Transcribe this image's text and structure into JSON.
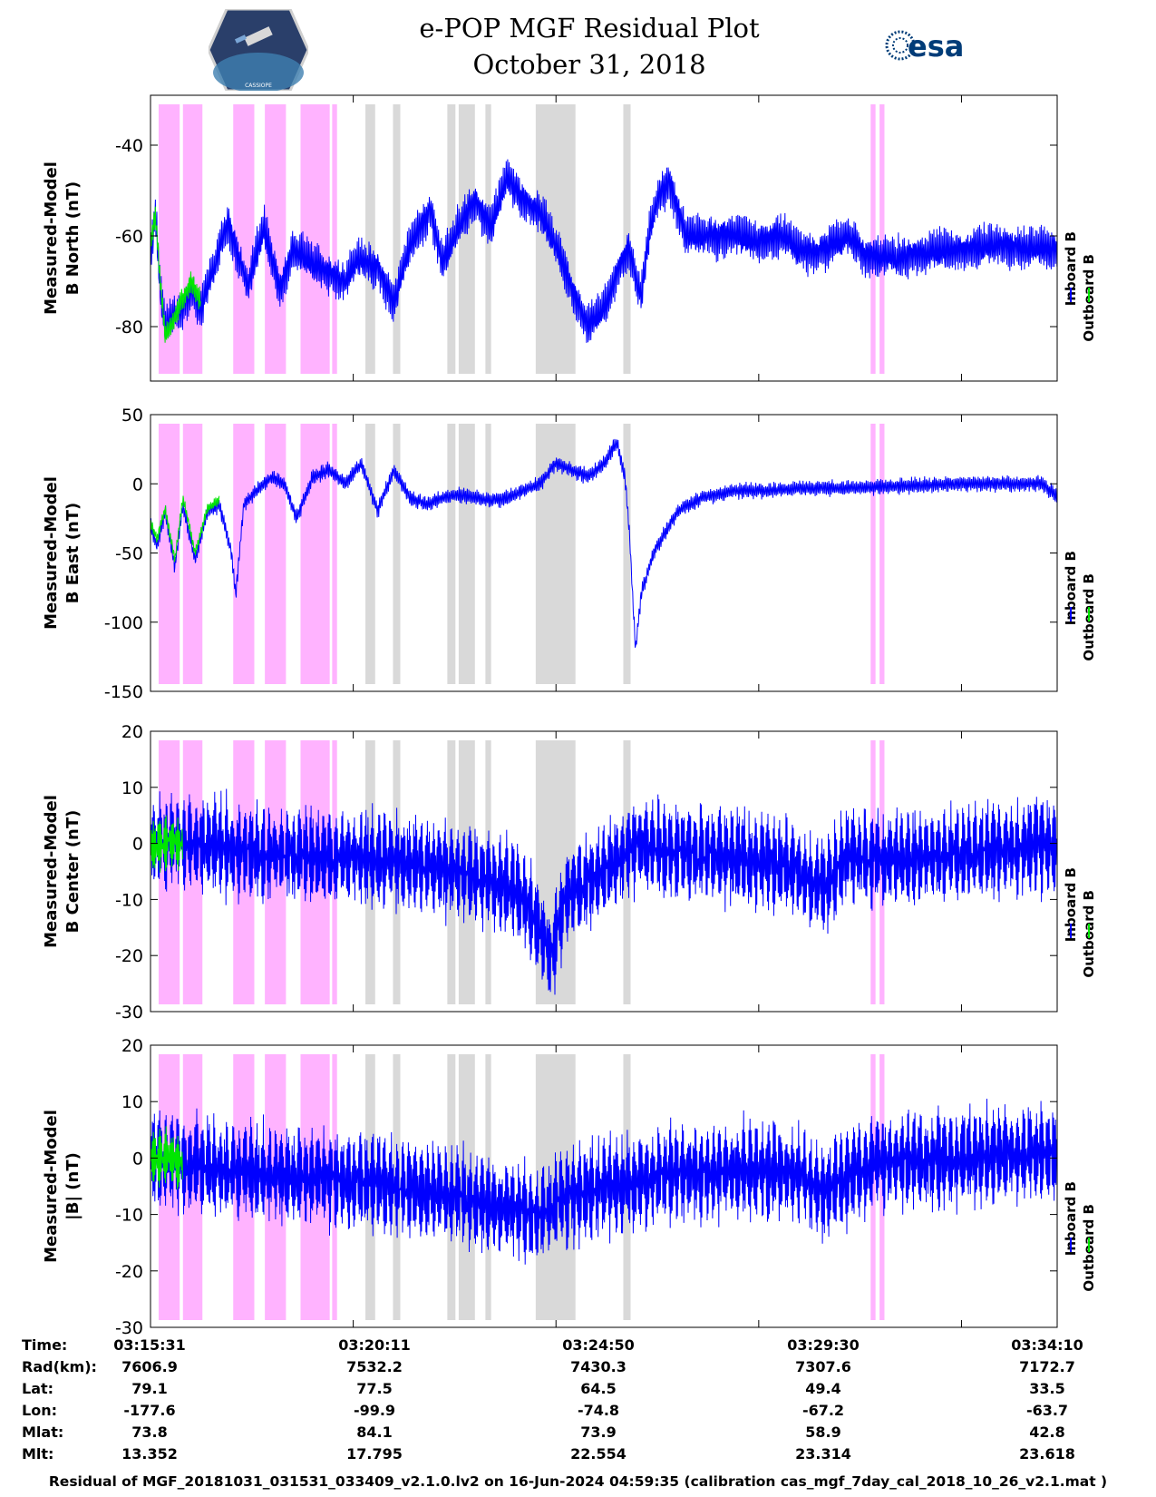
{
  "header": {
    "title_line1": "e-POP MGF Residual Plot",
    "title_line2": "October 31, 2018",
    "logo_left_label": "CASSIOPE",
    "logo_right_label": "esa"
  },
  "colors": {
    "inboard": "#0000ff",
    "outboard": "#00e600",
    "magenta_band": "#ffb3ff",
    "gray_band": "#d9d9d9"
  },
  "legend": {
    "inboard": "Inboard B",
    "outboard": "Outboard B"
  },
  "chart_data": [
    {
      "type": "line",
      "panel": "north",
      "ylabel_line1": "Measured-Model",
      "ylabel_line2": "B North (nT)",
      "ylim": [
        -92,
        -29
      ],
      "yticks": [
        -80,
        -60,
        -40
      ],
      "xlim": [
        0,
        1118
      ],
      "xlabel": "Time",
      "series": [
        {
          "name": "Inboard B",
          "anchors": [
            [
              0,
              -65
            ],
            [
              6,
              -55
            ],
            [
              12,
              -72
            ],
            [
              18,
              -80
            ],
            [
              26,
              -78
            ],
            [
              36,
              -77
            ],
            [
              50,
              -72
            ],
            [
              62,
              -76
            ],
            [
              80,
              -66
            ],
            [
              95,
              -57
            ],
            [
              110,
              -65
            ],
            [
              120,
              -71
            ],
            [
              140,
              -58
            ],
            [
              160,
              -72
            ],
            [
              175,
              -63
            ],
            [
              200,
              -66
            ],
            [
              220,
              -68
            ],
            [
              240,
              -70
            ],
            [
              255,
              -65
            ],
            [
              280,
              -67
            ],
            [
              300,
              -75
            ],
            [
              320,
              -62
            ],
            [
              345,
              -54
            ],
            [
              360,
              -66
            ],
            [
              380,
              -58
            ],
            [
              400,
              -52
            ],
            [
              420,
              -58
            ],
            [
              440,
              -47
            ],
            [
              460,
              -52
            ],
            [
              480,
              -55
            ],
            [
              500,
              -62
            ],
            [
              520,
              -72
            ],
            [
              540,
              -80
            ],
            [
              560,
              -76
            ],
            [
              575,
              -68
            ],
            [
              590,
              -63
            ],
            [
              605,
              -73
            ],
            [
              615,
              -60
            ],
            [
              625,
              -52
            ],
            [
              640,
              -48
            ],
            [
              660,
              -60
            ],
            [
              690,
              -60
            ],
            [
              720,
              -60
            ],
            [
              750,
              -61
            ],
            [
              780,
              -60
            ],
            [
              800,
              -63
            ],
            [
              820,
              -64
            ],
            [
              840,
              -62
            ],
            [
              860,
              -60
            ],
            [
              880,
              -64
            ],
            [
              910,
              -65
            ],
            [
              950,
              -64
            ],
            [
              1000,
              -63
            ],
            [
              1050,
              -62
            ],
            [
              1100,
              -63
            ],
            [
              1118,
              -63
            ]
          ],
          "noise": 5,
          "freq": 0.55
        },
        {
          "name": "Outboard B",
          "anchors": [
            [
              0,
              -62
            ],
            [
              6,
              -55
            ],
            [
              12,
              -70
            ],
            [
              18,
              -82
            ],
            [
              26,
              -80
            ],
            [
              36,
              -75
            ],
            [
              50,
              -70
            ],
            [
              62,
              -74
            ]
          ],
          "noise": 3,
          "freq": 0.55
        }
      ]
    },
    {
      "type": "line",
      "panel": "east",
      "ylabel_line1": "Measured-Model",
      "ylabel_line2": "B East (nT)",
      "ylim": [
        -150,
        50
      ],
      "yticks": [
        -150,
        -100,
        -50,
        0,
        50
      ],
      "xlim": [
        0,
        1118
      ],
      "xlabel": "Time",
      "series": [
        {
          "name": "Inboard B",
          "anchors": [
            [
              0,
              -30
            ],
            [
              8,
              -45
            ],
            [
              18,
              -20
            ],
            [
              30,
              -60
            ],
            [
              40,
              -15
            ],
            [
              55,
              -55
            ],
            [
              70,
              -20
            ],
            [
              85,
              -15
            ],
            [
              100,
              -50
            ],
            [
              105,
              -80
            ],
            [
              115,
              -15
            ],
            [
              130,
              -5
            ],
            [
              150,
              5
            ],
            [
              165,
              0
            ],
            [
              180,
              -25
            ],
            [
              200,
              5
            ],
            [
              220,
              10
            ],
            [
              240,
              0
            ],
            [
              260,
              15
            ],
            [
              280,
              -20
            ],
            [
              300,
              10
            ],
            [
              320,
              -10
            ],
            [
              340,
              -15
            ],
            [
              360,
              -10
            ],
            [
              380,
              -8
            ],
            [
              400,
              -10
            ],
            [
              420,
              -12
            ],
            [
              440,
              -10
            ],
            [
              460,
              -5
            ],
            [
              480,
              0
            ],
            [
              500,
              15
            ],
            [
              520,
              10
            ],
            [
              540,
              5
            ],
            [
              560,
              15
            ],
            [
              575,
              30
            ],
            [
              585,
              5
            ],
            [
              590,
              -30
            ],
            [
              598,
              -120
            ],
            [
              605,
              -80
            ],
            [
              620,
              -50
            ],
            [
              650,
              -20
            ],
            [
              680,
              -10
            ],
            [
              720,
              -5
            ],
            [
              760,
              -5
            ],
            [
              800,
              -3
            ],
            [
              850,
              -3
            ],
            [
              900,
              -2
            ],
            [
              950,
              -1
            ],
            [
              1000,
              0
            ],
            [
              1050,
              0
            ],
            [
              1100,
              0
            ],
            [
              1118,
              -10
            ]
          ],
          "noise": 6,
          "freq": 0.5
        },
        {
          "name": "Outboard B",
          "anchors": [
            [
              0,
              -28
            ],
            [
              8,
              -40
            ],
            [
              18,
              -18
            ],
            [
              30,
              -55
            ],
            [
              40,
              -10
            ],
            [
              55,
              -50
            ],
            [
              70,
              -18
            ],
            [
              85,
              -12
            ]
          ],
          "noise": 4,
          "freq": 0.5
        }
      ]
    },
    {
      "type": "line",
      "panel": "center",
      "ylabel_line1": "Measured-Model",
      "ylabel_line2": "B Center (nT)",
      "ylim": [
        -30,
        20
      ],
      "yticks": [
        -30,
        -20,
        -10,
        0,
        10,
        20
      ],
      "xlim": [
        0,
        1118
      ],
      "xlabel": "Time",
      "series": [
        {
          "name": "Inboard B",
          "anchors": [
            [
              0,
              0
            ],
            [
              40,
              0
            ],
            [
              150,
              -2
            ],
            [
              300,
              -3
            ],
            [
              380,
              -5
            ],
            [
              450,
              -8
            ],
            [
              480,
              -15
            ],
            [
              495,
              -20
            ],
            [
              510,
              -10
            ],
            [
              560,
              -5
            ],
            [
              600,
              0
            ],
            [
              680,
              -2
            ],
            [
              750,
              -3
            ],
            [
              800,
              -5
            ],
            [
              830,
              -8
            ],
            [
              860,
              -2
            ],
            [
              900,
              -3
            ],
            [
              1000,
              -2
            ],
            [
              1118,
              0
            ]
          ],
          "noise": 9,
          "freq": 0.9
        },
        {
          "name": "Outboard B",
          "anchors": [
            [
              0,
              0
            ],
            [
              40,
              0
            ]
          ],
          "noise": 5,
          "freq": 0.9
        }
      ]
    },
    {
      "type": "line",
      "panel": "total",
      "ylabel_line1": "Measured-Model",
      "ylabel_line2": "|B| (nT)",
      "ylim": [
        -30,
        20
      ],
      "yticks": [
        -30,
        -20,
        -10,
        0,
        10,
        20
      ],
      "xlim": [
        0,
        1118
      ],
      "xlabel": "Time",
      "series": [
        {
          "name": "Inboard B",
          "anchors": [
            [
              0,
              0
            ],
            [
              40,
              -1
            ],
            [
              150,
              -3
            ],
            [
              250,
              -4
            ],
            [
              350,
              -6
            ],
            [
              450,
              -9
            ],
            [
              480,
              -10
            ],
            [
              500,
              -8
            ],
            [
              560,
              -5
            ],
            [
              650,
              -3
            ],
            [
              750,
              -2
            ],
            [
              800,
              -3
            ],
            [
              830,
              -6
            ],
            [
              860,
              -3
            ],
            [
              900,
              -1
            ],
            [
              1000,
              0
            ],
            [
              1118,
              1
            ]
          ],
          "noise": 9,
          "freq": 0.9
        },
        {
          "name": "Outboard B",
          "anchors": [
            [
              0,
              0
            ],
            [
              40,
              0
            ]
          ],
          "noise": 5,
          "freq": 0.9
        }
      ]
    }
  ],
  "shaded_regions": {
    "magenta": [
      [
        10,
        36
      ],
      [
        40,
        64
      ],
      [
        102,
        128
      ],
      [
        141,
        167
      ],
      [
        185,
        221
      ],
      [
        224,
        230
      ],
      [
        888,
        894
      ],
      [
        899,
        905
      ]
    ],
    "gray": [
      [
        265,
        277
      ],
      [
        299,
        308
      ],
      [
        366,
        376
      ],
      [
        380,
        400
      ],
      [
        413,
        420
      ],
      [
        475,
        524
      ],
      [
        583,
        592
      ]
    ]
  },
  "info_table": {
    "labels": [
      "Time:",
      "Rad(km):",
      "Lat:",
      "Lon:",
      "Mlat:",
      "Mlt:"
    ],
    "columns": [
      {
        "time": "03:15:31",
        "rad": "7606.9",
        "lat": "79.1",
        "lon": "-177.6",
        "mlat": "73.8",
        "mlt": "13.352"
      },
      {
        "time": "03:20:11",
        "rad": "7532.2",
        "lat": "77.5",
        "lon": "-99.9",
        "mlat": "84.1",
        "mlt": "17.795"
      },
      {
        "time": "03:24:50",
        "rad": "7430.3",
        "lat": "64.5",
        "lon": "-74.8",
        "mlat": "73.9",
        "mlt": "22.554"
      },
      {
        "time": "03:29:30",
        "rad": "7307.6",
        "lat": "49.4",
        "lon": "-67.2",
        "mlat": "58.9",
        "mlt": "23.314"
      },
      {
        "time": "03:34:10",
        "rad": "7172.7",
        "lat": "33.5",
        "lon": "-63.7",
        "mlat": "42.8",
        "mlt": "23.618"
      }
    ]
  },
  "footer": "Residual of MGF_20181031_031531_033409_v2.1.0.lv2 on 16-Jun-2024 04:59:35 (calibration cas_mgf_7day_cal_2018_10_26_v2.1.mat )"
}
